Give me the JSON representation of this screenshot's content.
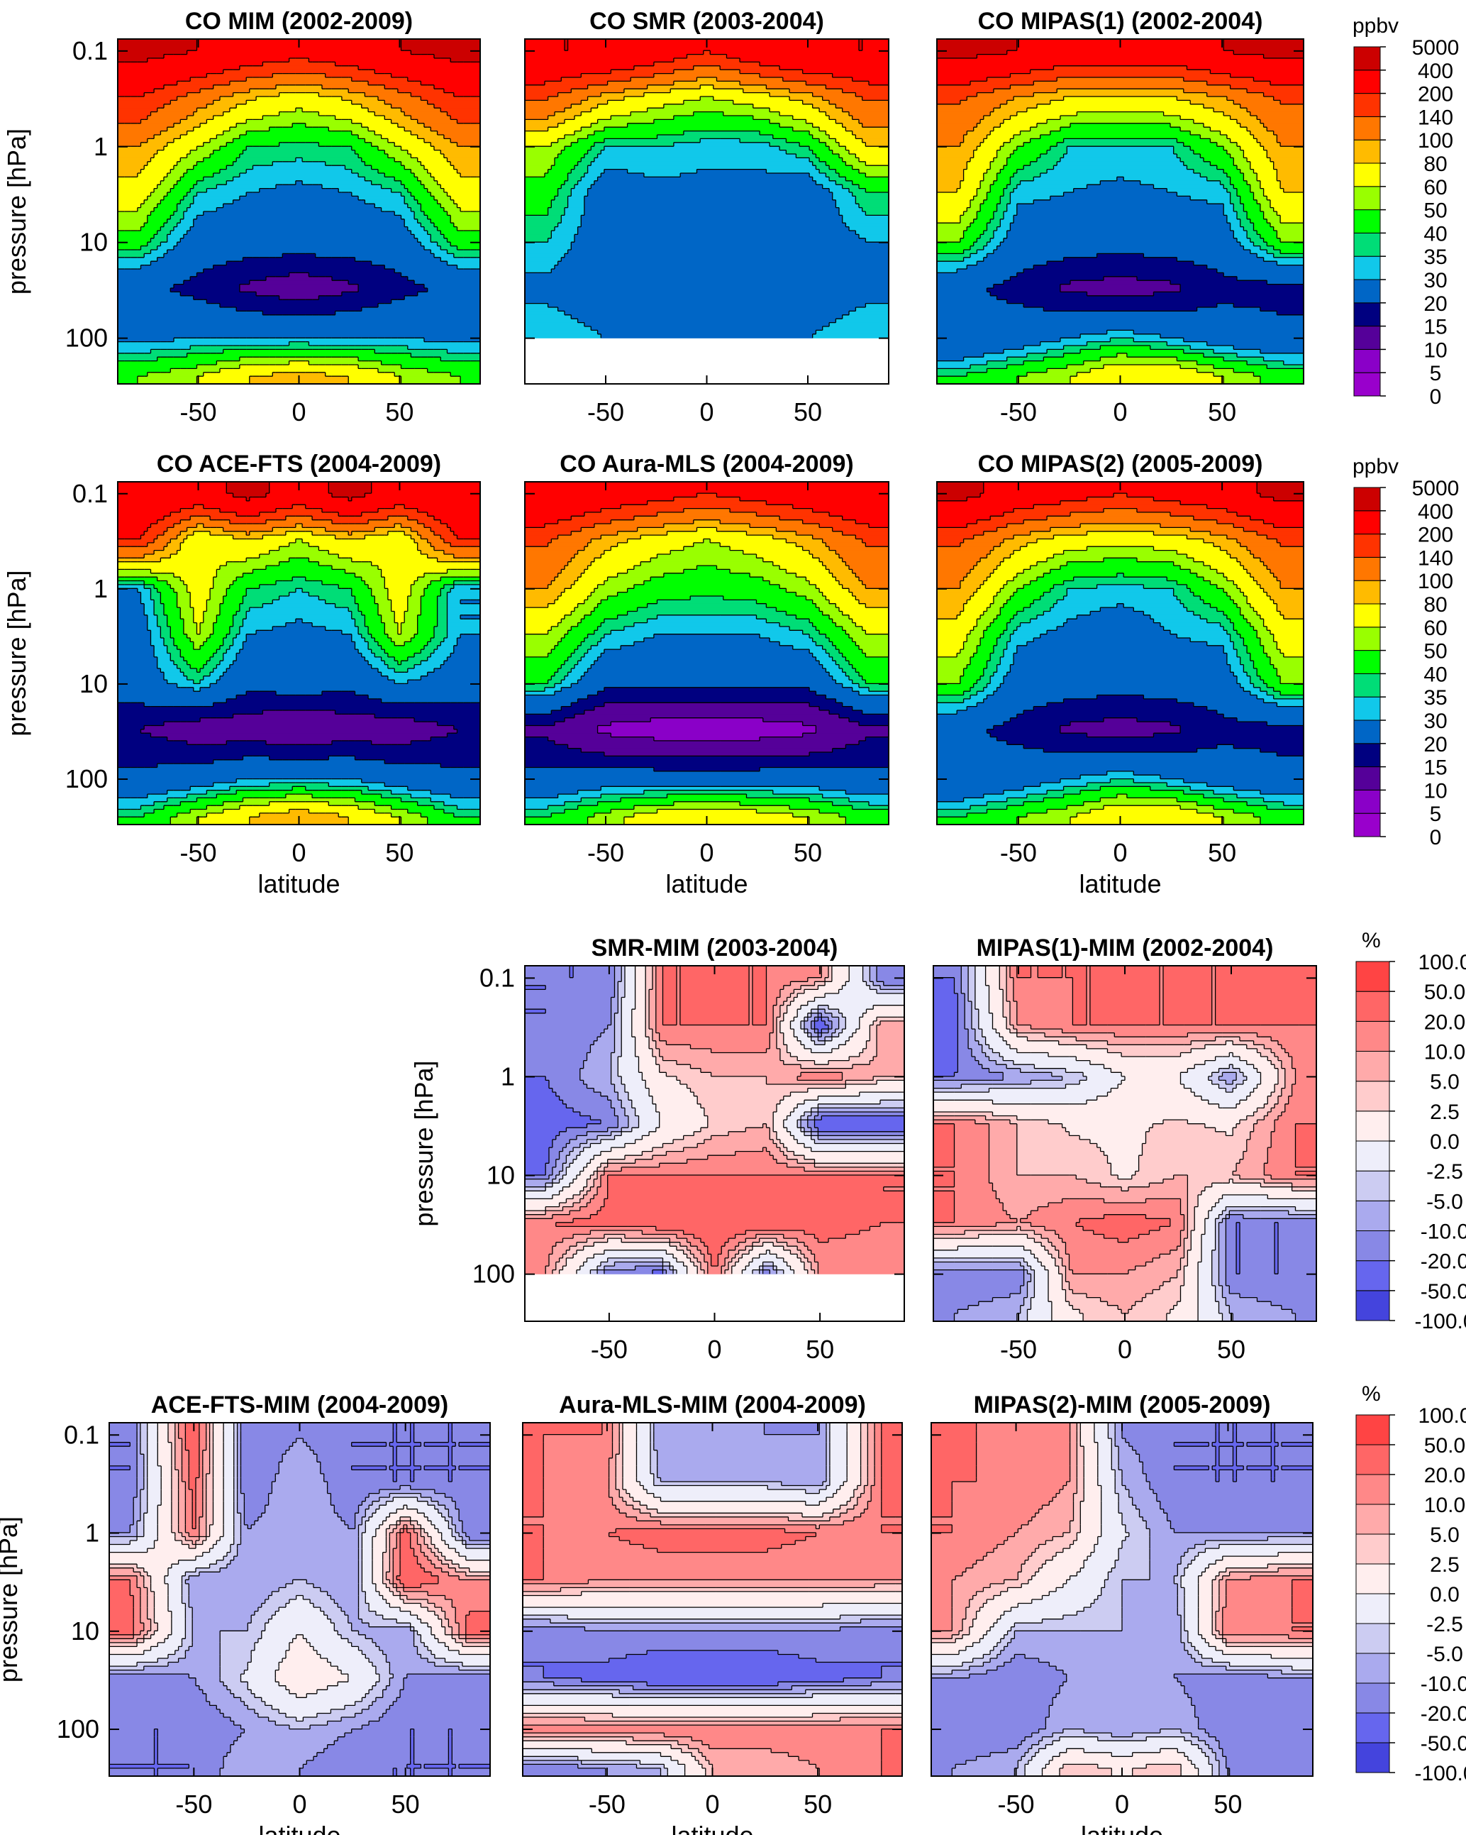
{
  "chart_data": {
    "type": "heatmap",
    "subtype": "filled-contour",
    "x_axis": {
      "label": "latitude",
      "ticks": [
        "-50",
        "0",
        "50"
      ],
      "range": [
        -90,
        90
      ]
    },
    "y_axis": {
      "label": "pressure [hPa]",
      "ticks": [
        "0.1",
        "1",
        "10",
        "100"
      ],
      "scale": "log",
      "range": [
        300,
        0.075
      ],
      "inverted": true
    },
    "grid_pressures_hPa": [
      0.1,
      0.3,
      1,
      3,
      10,
      30,
      100,
      250
    ],
    "grid_latitudes": [
      -80,
      -50,
      -25,
      0,
      25,
      50,
      80
    ],
    "colorbars": {
      "abs": {
        "unit": "ppbv",
        "levels": [
          "0",
          "5",
          "10",
          "15",
          "20",
          "30",
          "35",
          "40",
          "50",
          "60",
          "80",
          "100",
          "140",
          "200",
          "400",
          "5000"
        ],
        "bounds": [
          0,
          5,
          10,
          15,
          20,
          30,
          35,
          40,
          50,
          60,
          80,
          100,
          140,
          200,
          400,
          5000
        ],
        "colors": [
          "#9900CC",
          "#8A00C8",
          "#550099",
          "#000080",
          "#0066C6",
          "#11C8EA",
          "#00DD77",
          "#00FF00",
          "#99FF00",
          "#FFFF00",
          "#FFBB00",
          "#FF7700",
          "#FF3300",
          "#FF0000",
          "#CC0000"
        ]
      },
      "diff": {
        "unit": "%",
        "levels": [
          "-100.0",
          "-50.0",
          "-20.0",
          "-10.0",
          "-5.0",
          "-2.5",
          "0.0",
          "2.5",
          "5.0",
          "10.0",
          "20.0",
          "50.0",
          "100.0"
        ],
        "bounds": [
          -100,
          -50,
          -20,
          -10,
          -5,
          -2.5,
          0,
          2.5,
          5,
          10,
          20,
          50,
          100
        ],
        "colors": [
          "#4444DD",
          "#6666EE",
          "#8888E6",
          "#AAAAEE",
          "#CCCCF2",
          "#EEEEFA",
          "#FFEEEE",
          "#FFCCCC",
          "#FFAAAA",
          "#FF8888",
          "#FF6666",
          "#FF4444"
        ]
      }
    },
    "panels": [
      {
        "title": "CO MIM (2002-2009)",
        "scale": "abs",
        "values": [
          [
            500,
            400,
            300,
            250,
            300,
            400,
            500
          ],
          [
            200,
            120,
            85,
            70,
            85,
            120,
            200
          ],
          [
            100,
            60,
            40,
            38,
            40,
            60,
            100
          ],
          [
            70,
            35,
            30,
            28,
            30,
            35,
            70
          ],
          [
            45,
            25,
            24,
            24,
            24,
            25,
            45
          ],
          [
            22,
            18,
            14,
            12,
            14,
            18,
            22
          ],
          [
            28,
            30,
            30,
            30,
            30,
            30,
            28
          ],
          [
            50,
            60,
            80,
            90,
            80,
            60,
            50
          ]
        ]
      },
      {
        "title": "CO SMR (2003-2004)",
        "scale": "abs",
        "values": [
          [
            400,
            400,
            300,
            200,
            300,
            400,
            400
          ],
          [
            150,
            90,
            70,
            60,
            70,
            90,
            150
          ],
          [
            60,
            35,
            35,
            32,
            32,
            40,
            80
          ],
          [
            45,
            25,
            28,
            28,
            28,
            25,
            40
          ],
          [
            35,
            25,
            25,
            25,
            25,
            25,
            30
          ],
          [
            28,
            25,
            20,
            22,
            25,
            25,
            28
          ],
          [
            35,
            30,
            30,
            30,
            30,
            30,
            35
          ],
          [
            null,
            null,
            null,
            null,
            null,
            null,
            null
          ]
        ]
      },
      {
        "title": "CO MIPAS(1) (2002-2004)",
        "scale": "abs",
        "values": [
          [
            500,
            400,
            300,
            300,
            300,
            400,
            500
          ],
          [
            150,
            100,
            80,
            75,
            80,
            100,
            150
          ],
          [
            100,
            50,
            35,
            35,
            35,
            50,
            100
          ],
          [
            80,
            32,
            30,
            28,
            30,
            32,
            80
          ],
          [
            50,
            25,
            24,
            23,
            24,
            25,
            50
          ],
          [
            22,
            18,
            14,
            13,
            14,
            18,
            18
          ],
          [
            20,
            25,
            30,
            35,
            30,
            25,
            22
          ],
          [
            40,
            50,
            60,
            80,
            80,
            60,
            45
          ]
        ]
      },
      {
        "title": "CO ACE-FTS (2004-2009)",
        "scale": "abs",
        "values": [
          [
            400,
            300,
            500,
            300,
            500,
            300,
            400
          ],
          [
            200,
            60,
            80,
            60,
            80,
            60,
            200
          ],
          [
            30,
            70,
            40,
            35,
            40,
            70,
            30
          ],
          [
            25,
            60,
            30,
            28,
            30,
            60,
            30
          ],
          [
            25,
            35,
            22,
            24,
            22,
            30,
            25
          ],
          [
            15,
            12,
            12,
            11,
            12,
            12,
            15
          ],
          [
            22,
            25,
            30,
            30,
            30,
            25,
            22
          ],
          [
            40,
            60,
            80,
            100,
            80,
            60,
            40
          ]
        ]
      },
      {
        "title": "CO Aura-MLS (2004-2009)",
        "scale": "abs",
        "values": [
          [
            400,
            300,
            250,
            200,
            250,
            300,
            400
          ],
          [
            150,
            90,
            70,
            60,
            70,
            90,
            150
          ],
          [
            100,
            55,
            45,
            42,
            45,
            55,
            100
          ],
          [
            60,
            35,
            30,
            30,
            30,
            35,
            60
          ],
          [
            40,
            22,
            22,
            22,
            22,
            22,
            40
          ],
          [
            14,
            9,
            8,
            8,
            8,
            9,
            14
          ],
          [
            22,
            25,
            25,
            25,
            25,
            25,
            22
          ],
          [
            40,
            55,
            70,
            80,
            70,
            60,
            45
          ]
        ]
      },
      {
        "title": "CO MIPAS(2) (2005-2009)",
        "scale": "abs",
        "values": [
          [
            500,
            300,
            250,
            200,
            250,
            300,
            500
          ],
          [
            150,
            90,
            70,
            65,
            70,
            90,
            150
          ],
          [
            100,
            50,
            35,
            33,
            35,
            50,
            100
          ],
          [
            70,
            32,
            28,
            25,
            30,
            32,
            70
          ],
          [
            50,
            25,
            24,
            23,
            24,
            25,
            50
          ],
          [
            22,
            18,
            14,
            13,
            14,
            18,
            18
          ],
          [
            20,
            25,
            30,
            35,
            30,
            25,
            22
          ],
          [
            40,
            50,
            60,
            80,
            80,
            60,
            45
          ]
        ]
      },
      {
        "title": "SMR-MIM (2003-2004)",
        "scale": "diff",
        "values": [
          [
            -20,
            -20,
            20,
            20,
            20,
            10,
            -20
          ],
          [
            -20,
            -10,
            20,
            20,
            20,
            -50,
            10
          ],
          [
            -20,
            -5,
            2,
            5,
            5,
            20,
            5
          ],
          [
            -30,
            -20,
            0,
            3,
            5,
            -50,
            -50
          ],
          [
            -20,
            20,
            20,
            20,
            20,
            20,
            20
          ],
          [
            20,
            30,
            50,
            50,
            50,
            30,
            20
          ],
          [
            10,
            -20,
            -30,
            20,
            -20,
            10,
            10
          ],
          [
            null,
            null,
            null,
            null,
            null,
            null,
            null
          ]
        ]
      },
      {
        "title": "MIPAS(1)-MIM (2002-2004)",
        "scale": "diff",
        "values": [
          [
            -20,
            20,
            20,
            20,
            20,
            20,
            30
          ],
          [
            -30,
            10,
            20,
            20,
            20,
            20,
            20
          ],
          [
            -20,
            -10,
            -5,
            0,
            0,
            -10,
            10
          ],
          [
            20,
            5,
            2,
            2,
            3,
            2,
            20
          ],
          [
            20,
            5,
            5,
            2,
            5,
            5,
            20
          ],
          [
            20,
            10,
            20,
            30,
            20,
            -20,
            -20
          ],
          [
            -20,
            -20,
            10,
            10,
            5,
            -20,
            -20
          ],
          [
            -10,
            -5,
            2,
            5,
            2,
            -5,
            -10
          ]
        ]
      },
      {
        "title": "ACE-FTS-MIM (2004-2009)",
        "scale": "diff",
        "values": [
          [
            -20,
            50,
            -20,
            -10,
            -20,
            -20,
            -20
          ],
          [
            -20,
            30,
            -20,
            -5,
            -20,
            -20,
            -20
          ],
          [
            -10,
            20,
            -10,
            -5,
            -10,
            30,
            -20
          ],
          [
            20,
            -10,
            -10,
            -5,
            -10,
            50,
            10
          ],
          [
            30,
            -5,
            -5,
            0,
            -5,
            -10,
            30
          ],
          [
            -20,
            -10,
            -2,
            2,
            0,
            -10,
            -20
          ],
          [
            -20,
            -20,
            -10,
            -5,
            -10,
            -20,
            -20
          ],
          [
            -20,
            -20,
            -5,
            -10,
            -20,
            -20,
            -20
          ]
        ]
      },
      {
        "title": "Aura-MLS-MIM (2004-2009)",
        "scale": "diff",
        "values": [
          [
            20,
            20,
            -10,
            -5,
            -10,
            -10,
            20
          ],
          [
            20,
            10,
            -5,
            -5,
            -5,
            -10,
            20
          ],
          [
            20,
            20,
            30,
            30,
            30,
            20,
            20
          ],
          [
            20,
            10,
            10,
            10,
            10,
            10,
            10
          ],
          [
            -20,
            -10,
            -10,
            -10,
            -10,
            -10,
            -20
          ],
          [
            -20,
            -30,
            -50,
            -50,
            -50,
            -30,
            -20
          ],
          [
            20,
            20,
            20,
            20,
            20,
            20,
            20
          ],
          [
            -20,
            -10,
            -5,
            5,
            5,
            10,
            20
          ]
        ]
      },
      {
        "title": "MIPAS(2)-MIM (2005-2009)",
        "scale": "diff",
        "values": [
          [
            30,
            10,
            10,
            -10,
            -20,
            -20,
            -20
          ],
          [
            20,
            20,
            10,
            -5,
            -20,
            -20,
            -20
          ],
          [
            20,
            10,
            5,
            -2,
            -10,
            -10,
            -10
          ],
          [
            10,
            5,
            0,
            -5,
            -5,
            10,
            20
          ],
          [
            10,
            -5,
            -5,
            -5,
            -10,
            20,
            20
          ],
          [
            -10,
            -20,
            -10,
            -10,
            -10,
            -20,
            -10
          ],
          [
            -20,
            -20,
            -5,
            -10,
            -5,
            -20,
            -20
          ],
          [
            -10,
            -5,
            5,
            2,
            5,
            -10,
            -10
          ]
        ]
      }
    ]
  }
}
